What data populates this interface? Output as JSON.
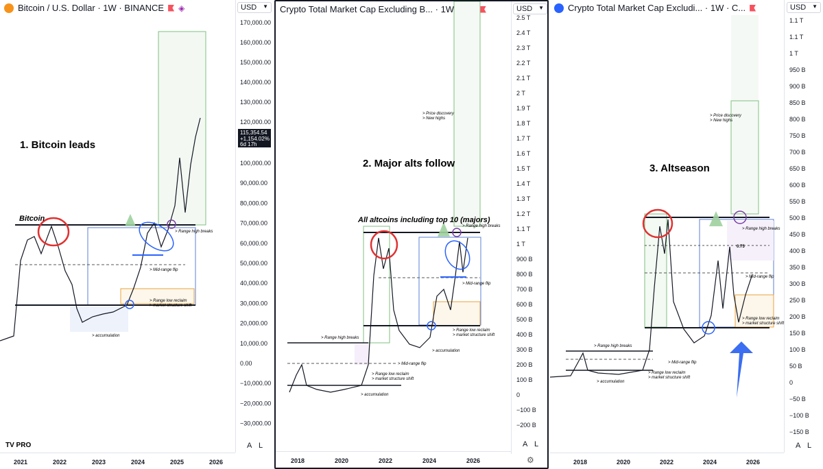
{
  "panels": [
    {
      "title": "Bitcoin / U.S. Dollar · 1W · BINANCE",
      "currency": "USD",
      "heading": "1. Bitcoin leads",
      "y_ticks": [
        "170,000.00",
        "160,000.00",
        "150,000.00",
        "140,000.00",
        "130,000.00",
        "120,000.00",
        "100,000.00",
        "90,000.00",
        "80,000.00",
        "70,000.00",
        "60,000.00",
        "50,000.00",
        "40,000.00",
        "30,000.00",
        "20,000.00",
        "10,000.00",
        "0.00",
        "−10,000.00",
        "−20,000.00",
        "−30,000.00"
      ],
      "price_label": [
        "115,354.54",
        "+1,154.02%",
        "6d 17h"
      ],
      "x_ticks": [
        "2021",
        "2022",
        "2023",
        "2024",
        "2025",
        "2026"
      ],
      "annotations": [
        "Bitcoin",
        "> Range high breaks",
        "> Mid-range flip",
        "> Range low reclaim",
        "> market structure shift",
        "> accumulation"
      ],
      "logo": "TV PRO",
      "buttons": [
        "A",
        "L"
      ]
    },
    {
      "title": "Crypto Total Market Cap Excluding B... · 1W · C...",
      "currency": "USD",
      "heading": "2. Major alts follow",
      "subheading": "All altcoins including top 10 (majors)",
      "y_ticks": [
        "2.5 T",
        "2.4 T",
        "2.3 T",
        "2.2 T",
        "2.1 T",
        "2 T",
        "1.9 T",
        "1.8 T",
        "1.7 T",
        "1.6 T",
        "1.5 T",
        "1.4 T",
        "1.3 T",
        "1.2 T",
        "1.1 T",
        "1 T",
        "900 B",
        "800 B",
        "700 B",
        "600 B",
        "500 B",
        "400 B",
        "300 B",
        "200 B",
        "100 B",
        "0",
        "−100 B",
        "−200 B"
      ],
      "x_ticks": [
        "2018",
        "2020",
        "2022",
        "2024",
        "2026"
      ],
      "annotations": [
        "> Price discovery",
        "> New highs",
        "> Range high breaks",
        "> Mid-range flip",
        "> Range low reclaim",
        "> market structure shift",
        "> accumulation",
        "> Range high breaks",
        "> Mid-range flip",
        "> Range low reclaim",
        "> market structure shift",
        "> accumulation"
      ],
      "buttons": [
        "A",
        "L"
      ]
    },
    {
      "title": "Crypto Total Market Cap Excludi... · 1W · C...",
      "currency": "USD",
      "heading": "3. Altseason",
      "y_ticks": [
        "1.1 T",
        "1.1 T",
        "1 T",
        "950 B",
        "900 B",
        "850 B",
        "800 B",
        "750 B",
        "700 B",
        "650 B",
        "600 B",
        "550 B",
        "500 B",
        "450 B",
        "400 B",
        "350 B",
        "300 B",
        "250 B",
        "200 B",
        "150 B",
        "100 B",
        "50 B",
        "0",
        "−50 B",
        "−100 B",
        "−150 B"
      ],
      "x_ticks": [
        "2018",
        "2020",
        "2022",
        "2024",
        "2026"
      ],
      "annotations": [
        "> Price discovery",
        "> New highs",
        "0.75",
        "> Range high breaks",
        "> Mid-range flip",
        "> Range low reclaim",
        "> market structure shift",
        "> Range high breaks",
        "> Mid-range flip",
        "> Range low reclaim",
        "> market structure shift",
        "> accumulation"
      ],
      "buttons": [
        "A",
        "L"
      ]
    }
  ],
  "chart_data": [
    {
      "type": "line",
      "title": "Bitcoin / U.S. Dollar · 1W · BINANCE",
      "x": [
        "2021",
        "2022",
        "2023",
        "2024",
        "2025",
        "2026"
      ],
      "series": [
        {
          "values": [
            29000,
            47000,
            17000,
            42000,
            95000,
            115354
          ]
        }
      ],
      "ylim": [
        -30000,
        170000
      ],
      "colors": {
        "price": "#131722",
        "range": "#5b7fd6",
        "target": "#7fbf7f",
        "low_box": "#e8a33d",
        "circle_red": "#e03131"
      }
    },
    {
      "type": "line",
      "title": "Crypto Total Market Cap Excluding B... · 1W · C...",
      "x": [
        "2018",
        "2020",
        "2022",
        "2024",
        "2026"
      ],
      "series": [
        {
          "values": [
            300,
            100,
            1100,
            400,
            1100
          ]
        }
      ],
      "ylim": [
        -200,
        2500
      ],
      "unit": "B"
    },
    {
      "type": "line",
      "title": "Crypto Total Market Cap Excludi... · 1W · C...",
      "x": [
        "2018",
        "2020",
        "2022",
        "2024",
        "2026"
      ],
      "series": [
        {
          "values": [
            80,
            40,
            450,
            120,
            300
          ]
        }
      ],
      "ylim": [
        -150,
        1100
      ],
      "unit": "B"
    }
  ]
}
